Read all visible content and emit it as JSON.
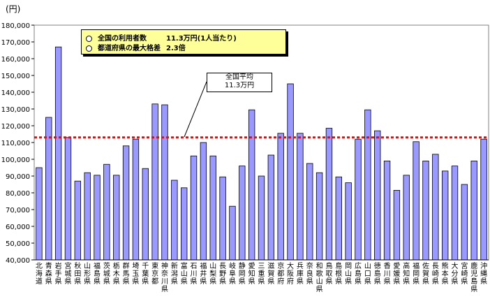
{
  "unit_label": "(円)",
  "legend": {
    "row1_label": "全国の利用者数",
    "row1_value": "11.3万円(1人当たり)",
    "row2_label": "都道府県の最大格差",
    "row2_value": "2.3倍"
  },
  "callout": {
    "line1": "全国平均",
    "line2": "11.3万円"
  },
  "colors": {
    "bar_fill": "#9999ff",
    "bar_stroke": "#000000",
    "average_line": "#ff0000",
    "legend_bg": "#ffff99"
  },
  "chart_data": {
    "type": "bar",
    "ylim": [
      40000,
      180000
    ],
    "ytick_step": 10000,
    "yticks": [
      "40,000",
      "50,000",
      "60,000",
      "70,000",
      "80,000",
      "90,000",
      "100,000",
      "110,000",
      "120,000",
      "130,000",
      "140,000",
      "150,000",
      "160,000",
      "170,000",
      "180,000"
    ],
    "average": 113000,
    "categories": [
      "北海道",
      "青森県",
      "岩手県",
      "宮城県",
      "秋田県",
      "山形県",
      "福島県",
      "茨城県",
      "栃木県",
      "群馬県",
      "埼玉県",
      "千葉県",
      "東京都",
      "神奈川県",
      "新潟県",
      "富山県",
      "石川県",
      "福井県",
      "山梨県",
      "長野県",
      "岐阜県",
      "静岡県",
      "愛知県",
      "三重県",
      "滋賀県",
      "京都府",
      "大阪府",
      "兵庫県",
      "奈良県",
      "和歌山県",
      "鳥取県",
      "島根県",
      "岡山県",
      "広島県",
      "山口県",
      "徳島県",
      "香川県",
      "愛媛県",
      "高知県",
      "福岡県",
      "佐賀県",
      "長崎県",
      "熊本県",
      "大分県",
      "宮崎県",
      "鹿児島県",
      "沖縄県"
    ],
    "values": [
      95000,
      125000,
      167000,
      113000,
      87000,
      92000,
      90500,
      97000,
      90500,
      108000,
      112000,
      94500,
      133000,
      132500,
      87500,
      83000,
      102000,
      110000,
      102000,
      89500,
      72000,
      96000,
      129500,
      90000,
      102500,
      115500,
      145000,
      115500,
      97500,
      92000,
      118500,
      89500,
      86000,
      112000,
      129500,
      117000,
      99000,
      81500,
      90500,
      110500,
      99000,
      103000,
      93000,
      96000,
      85000,
      99000,
      112000
    ]
  }
}
